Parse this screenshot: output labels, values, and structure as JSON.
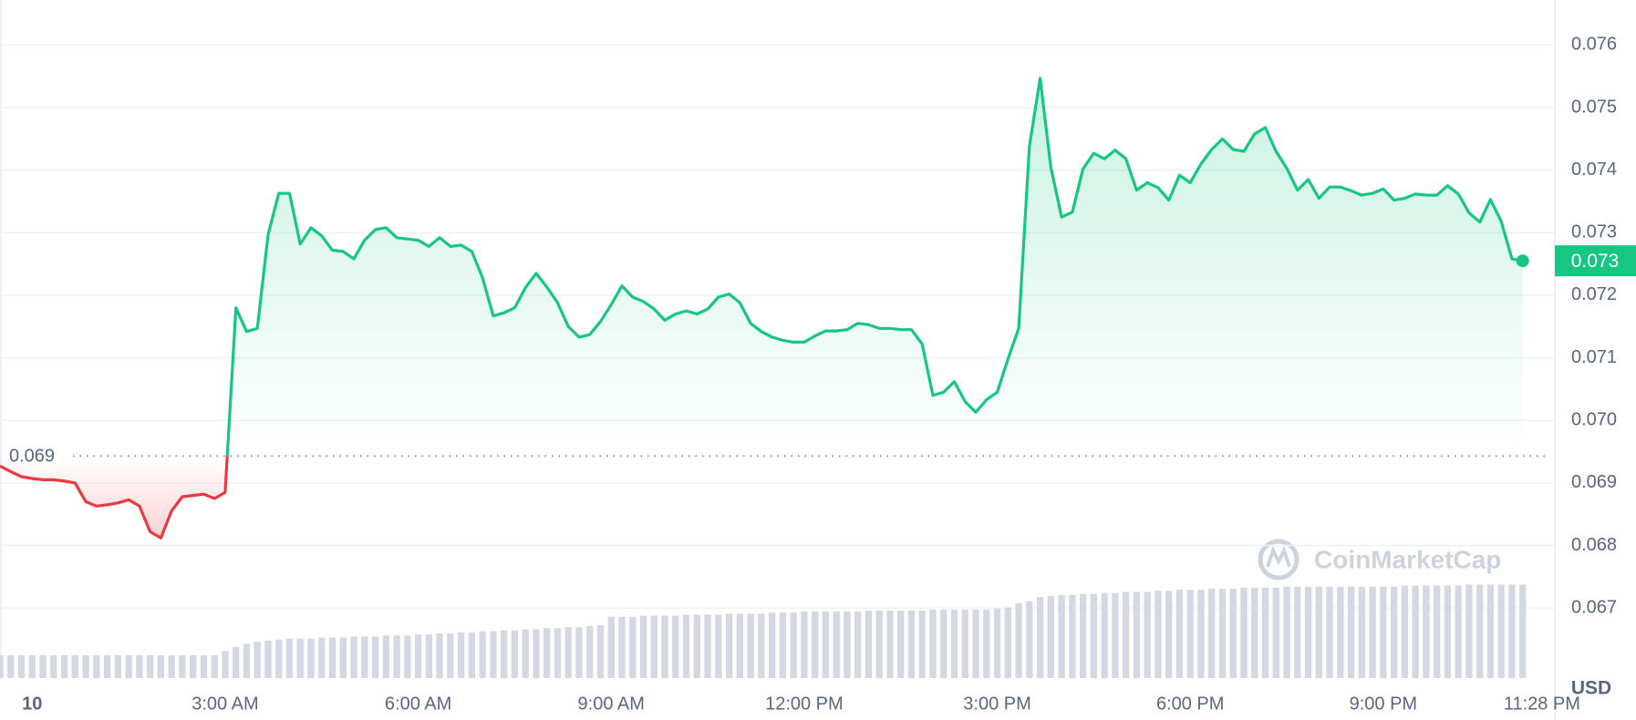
{
  "chart_data": {
    "type": "line",
    "currency": "USD",
    "watermark": "CoinMarketCap",
    "price_label": "0.073",
    "baseline": {
      "value": 0.06943,
      "label": "0.069"
    },
    "color_up": "#16c784",
    "color_down": "#ea3943",
    "volume_color": "#d3d8e2",
    "grid": true,
    "xlim": [
      -30,
      1420
    ],
    "ylim": [
      0.06588,
      0.07672
    ],
    "volume_lim": [
      0,
      100
    ],
    "xticks": [
      {
        "value": 0,
        "label": "10"
      },
      {
        "value": 180,
        "label": "3:00 AM"
      },
      {
        "value": 360,
        "label": "6:00 AM"
      },
      {
        "value": 540,
        "label": "9:00 AM"
      },
      {
        "value": 720,
        "label": "12:00 PM"
      },
      {
        "value": 900,
        "label": "3:00 PM"
      },
      {
        "value": 1080,
        "label": "6:00 PM"
      },
      {
        "value": 1260,
        "label": "9:00 PM"
      },
      {
        "value": 1408,
        "label": "11:28 PM"
      }
    ],
    "yticks": [
      0.067,
      0.068,
      0.069,
      {
        "value": 0.07,
        "label": "0.070"
      },
      0.071,
      0.072,
      0.073,
      0.074,
      0.075,
      0.076
    ],
    "x": [
      -30,
      -20,
      -10,
      0,
      10,
      20,
      30,
      40,
      50,
      60,
      70,
      80,
      90,
      100,
      110,
      120,
      130,
      140,
      150,
      160,
      170,
      180,
      190,
      200,
      210,
      220,
      230,
      240,
      250,
      260,
      270,
      280,
      290,
      300,
      310,
      320,
      330,
      340,
      350,
      360,
      370,
      380,
      390,
      400,
      410,
      420,
      430,
      440,
      450,
      460,
      470,
      480,
      490,
      500,
      510,
      520,
      530,
      540,
      550,
      560,
      570,
      580,
      590,
      600,
      610,
      620,
      630,
      640,
      650,
      660,
      670,
      680,
      690,
      700,
      710,
      720,
      730,
      740,
      750,
      760,
      770,
      780,
      790,
      800,
      810,
      820,
      830,
      840,
      850,
      860,
      870,
      880,
      890,
      900,
      910,
      920,
      930,
      940,
      950,
      960,
      970,
      980,
      990,
      1000,
      1010,
      1020,
      1030,
      1040,
      1050,
      1060,
      1070,
      1080,
      1090,
      1100,
      1110,
      1120,
      1130,
      1140,
      1150,
      1160,
      1170,
      1180,
      1190,
      1200,
      1210,
      1220,
      1230,
      1240,
      1250,
      1260,
      1270,
      1280,
      1290,
      1300,
      1310,
      1320,
      1330,
      1340,
      1350,
      1360,
      1370,
      1380,
      1390
    ],
    "values": [
      0.06927,
      0.06918,
      0.0691,
      0.06907,
      0.06905,
      0.06905,
      0.06903,
      0.069,
      0.0687,
      0.06863,
      0.06865,
      0.06868,
      0.06873,
      0.06863,
      0.06822,
      0.06812,
      0.06855,
      0.06878,
      0.0688,
      0.06882,
      0.06875,
      0.06885,
      0.0718,
      0.07142,
      0.07147,
      0.07297,
      0.07363,
      0.07363,
      0.07282,
      0.07308,
      0.07295,
      0.07272,
      0.0727,
      0.07258,
      0.07288,
      0.07305,
      0.07308,
      0.07292,
      0.0729,
      0.07288,
      0.07278,
      0.07292,
      0.07278,
      0.0728,
      0.0727,
      0.07228,
      0.07167,
      0.07172,
      0.0718,
      0.07212,
      0.07235,
      0.07213,
      0.07188,
      0.0715,
      0.07133,
      0.07137,
      0.07158,
      0.07185,
      0.07215,
      0.07197,
      0.0719,
      0.07178,
      0.0716,
      0.0717,
      0.07175,
      0.0717,
      0.07178,
      0.07197,
      0.07202,
      0.07188,
      0.07155,
      0.07142,
      0.07133,
      0.07128,
      0.07125,
      0.07125,
      0.07135,
      0.07143,
      0.07143,
      0.07145,
      0.07155,
      0.07153,
      0.07147,
      0.07147,
      0.07145,
      0.07145,
      0.07122,
      0.0704,
      0.07045,
      0.07062,
      0.0703,
      0.07013,
      0.07033,
      0.07045,
      0.07098,
      0.07147,
      0.07438,
      0.07547,
      0.07405,
      0.07325,
      0.07333,
      0.07402,
      0.07427,
      0.07418,
      0.07432,
      0.07418,
      0.07368,
      0.0738,
      0.07372,
      0.07352,
      0.07392,
      0.0738,
      0.0741,
      0.07433,
      0.0745,
      0.07433,
      0.0743,
      0.07458,
      0.07468,
      0.0743,
      0.07403,
      0.07368,
      0.07385,
      0.07355,
      0.07373,
      0.07373,
      0.07367,
      0.0736,
      0.07363,
      0.0737,
      0.07352,
      0.07355,
      0.07362,
      0.0736,
      0.0736,
      0.07375,
      0.07362,
      0.07332,
      0.07317,
      0.07353,
      0.07318,
      0.07258,
      0.07255
    ],
    "volume": [
      22,
      22,
      22,
      22,
      22,
      22,
      22,
      22,
      22,
      22,
      22,
      22,
      22,
      22,
      22,
      22,
      22,
      22,
      22,
      22,
      22,
      26,
      30,
      33,
      35,
      36,
      37,
      38,
      38,
      38,
      39,
      39,
      39,
      40,
      40,
      40,
      41,
      41,
      41,
      42,
      42,
      43,
      43,
      44,
      44,
      45,
      45,
      46,
      46,
      47,
      47,
      48,
      48,
      49,
      49,
      50,
      51,
      59,
      59,
      59,
      60,
      60,
      60,
      60,
      61,
      61,
      61,
      61,
      62,
      62,
      62,
      62,
      63,
      63,
      63,
      64,
      64,
      64,
      64,
      64,
      64,
      65,
      65,
      65,
      65,
      65,
      65,
      66,
      66,
      66,
      66,
      66,
      66,
      67,
      68,
      72,
      74,
      78,
      79,
      80,
      80,
      81,
      81,
      82,
      82,
      83,
      83,
      83,
      84,
      84,
      85,
      85,
      85,
      86,
      86,
      86,
      87,
      87,
      87,
      87,
      88,
      88,
      88,
      88,
      88,
      88,
      88,
      88,
      88,
      88,
      88,
      89,
      89,
      89,
      89,
      89,
      89,
      90,
      90,
      90,
      90,
      90,
      90
    ]
  }
}
